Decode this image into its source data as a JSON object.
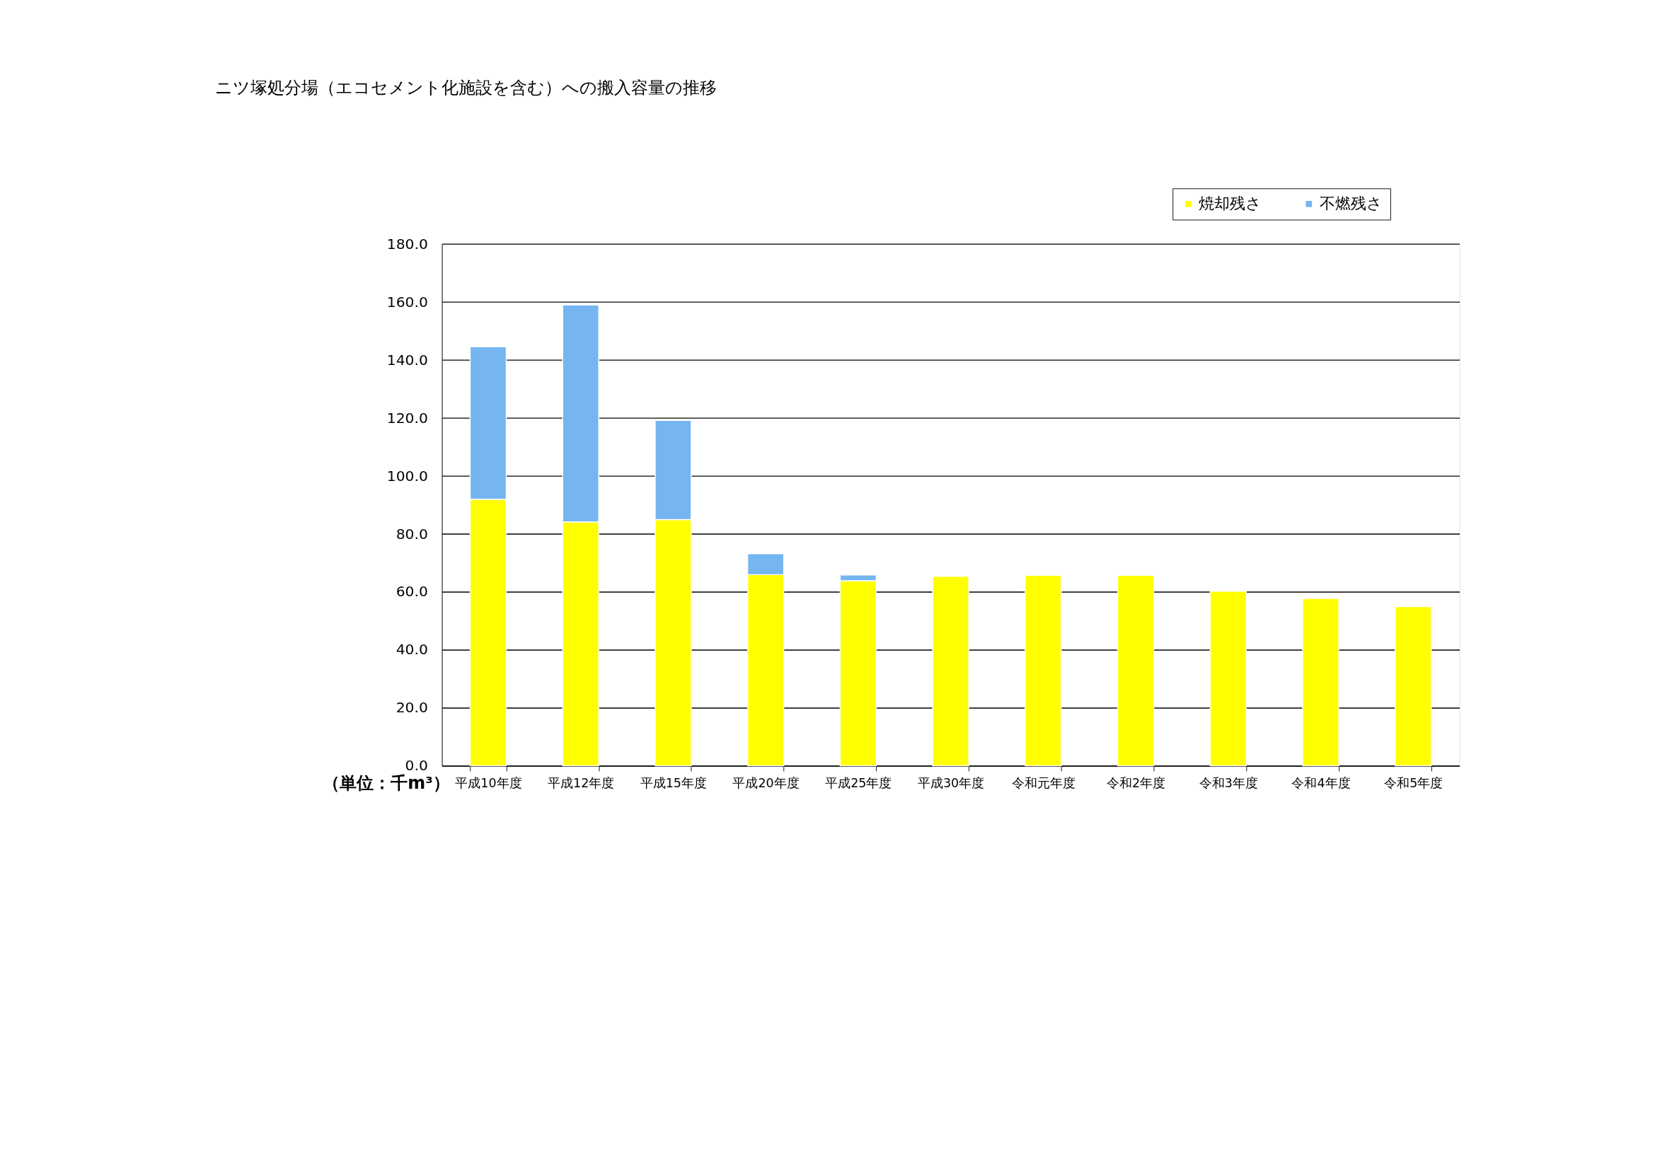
{
  "chart_data": {
    "type": "bar",
    "title": "ニツ塚処分場（エコセメント化施設を含む）への搬入容量の推移",
    "stacked": true,
    "categories": [
      "平成10年度",
      "平成12年度",
      "平成15年度",
      "平成20年度",
      "平成25年度",
      "平成30年度",
      "令和元年度",
      "令和2年度",
      "令和3年度",
      "令和4年度",
      "令和5年度"
    ],
    "series": [
      {
        "name": "焼却残さ",
        "color": "#ffff00",
        "values": [
          91.9,
          84.1,
          84.9,
          65.9,
          63.8,
          65.3,
          65.7,
          65.7,
          60.2,
          57.7,
          54.9
        ]
      },
      {
        "name": "不燃残さ",
        "color": "#75b5f0",
        "values": [
          52.6,
          74.8,
          34.2,
          7.2,
          2.0,
          null,
          null,
          null,
          null,
          null,
          null
        ]
      }
    ],
    "ylim": [
      0,
      180
    ],
    "yticks": [
      {
        "value": 0,
        "label": "0.0"
      },
      {
        "value": 20,
        "label": "20.0"
      },
      {
        "value": 40,
        "label": "40.0"
      },
      {
        "value": 60,
        "label": "60.0"
      },
      {
        "value": 80,
        "label": "80.0"
      },
      {
        "value": 100,
        "label": "100.0"
      },
      {
        "value": 120,
        "label": "120.0"
      },
      {
        "value": 140,
        "label": "140.0"
      },
      {
        "value": 160,
        "label": "160.0"
      },
      {
        "value": 180,
        "label": "180.0"
      }
    ],
    "grid": "y",
    "legend": "top right",
    "annotations": [
      "（単位：千m³）"
    ]
  }
}
